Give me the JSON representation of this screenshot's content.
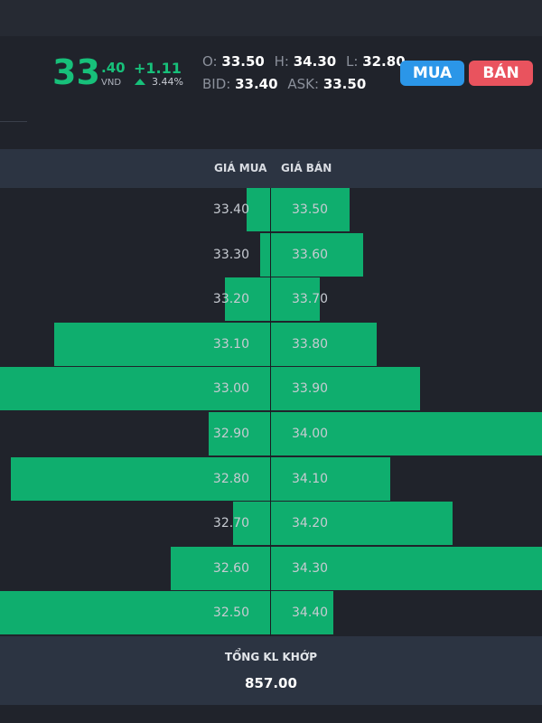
{
  "quote": {
    "price_int": "33",
    "price_dec": ".40",
    "unit": "VND",
    "change": "+1.11",
    "change_pct": "3.44%",
    "open_label": "O:",
    "open": "33.50",
    "high_label": "H:",
    "high": "34.30",
    "low_label": "L:",
    "low": "32.80",
    "bid_label": "BID:",
    "bid": "33.40",
    "ask_label": "ASK:",
    "ask": "33.50",
    "up_color": "#17c07a"
  },
  "actions": {
    "buy_label": "MUA",
    "sell_label": "BÁN",
    "buy_color": "#2b96e8",
    "sell_color": "#e9535e"
  },
  "orderbook": {
    "bid_header": "GIÁ MUA",
    "ask_header": "GIÁ BÁN",
    "bar_color": "#0fae6e",
    "rows": [
      {
        "bid_price": "33.40",
        "bid_level": 0.09,
        "ask_price": "33.50",
        "ask_level": 0.29
      },
      {
        "bid_price": "33.30",
        "bid_level": 0.04,
        "ask_price": "33.60",
        "ask_level": 0.34
      },
      {
        "bid_price": "33.20",
        "bid_level": 0.17,
        "ask_price": "33.70",
        "ask_level": 0.18
      },
      {
        "bid_price": "33.10",
        "bid_level": 0.8,
        "ask_price": "33.80",
        "ask_level": 0.39
      },
      {
        "bid_price": "33.00",
        "bid_level": 1.0,
        "ask_price": "33.90",
        "ask_level": 0.55
      },
      {
        "bid_price": "32.90",
        "bid_level": 0.23,
        "ask_price": "34.00",
        "ask_level": 1.0
      },
      {
        "bid_price": "32.80",
        "bid_level": 0.96,
        "ask_price": "34.10",
        "ask_level": 0.44
      },
      {
        "bid_price": "32.70",
        "bid_level": 0.14,
        "ask_price": "34.20",
        "ask_level": 0.67
      },
      {
        "bid_price": "32.60",
        "bid_level": 0.37,
        "ask_price": "34.30",
        "ask_level": 1.0
      },
      {
        "bid_price": "32.50",
        "bid_level": 1.0,
        "ask_price": "34.40",
        "ask_level": 0.23
      }
    ]
  },
  "footer": {
    "label": "TỔNG KL KHỚP",
    "value": "857.00"
  }
}
